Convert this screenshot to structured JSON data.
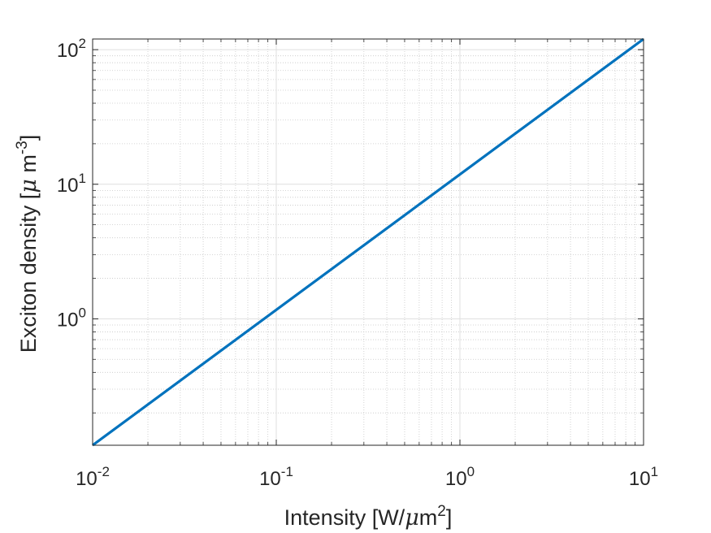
{
  "chart_data": {
    "type": "line",
    "x_scale": "log",
    "y_scale": "log",
    "xlim": [
      0.01,
      10
    ],
    "ylim": [
      0.115,
      120
    ],
    "grid": true,
    "minor_grid": true,
    "xlabel": {
      "text": "Intensity [W/",
      "mu": "μ",
      "unit": "m",
      "sup": "2",
      "close": "]"
    },
    "ylabel": {
      "text": "Exciton density [",
      "mu": "μ",
      "unit": " m",
      "sup": "-3",
      "close": "]"
    },
    "x_ticks": [
      {
        "value": 0.01,
        "base": "10",
        "exp": "-2"
      },
      {
        "value": 0.1,
        "base": "10",
        "exp": "-1"
      },
      {
        "value": 1,
        "base": "10",
        "exp": "0"
      },
      {
        "value": 10,
        "base": "10",
        "exp": "1"
      }
    ],
    "y_ticks": [
      {
        "value": 1,
        "base": "10",
        "exp": "0"
      },
      {
        "value": 10,
        "base": "10",
        "exp": "1"
      },
      {
        "value": 100,
        "base": "10",
        "exp": "2"
      }
    ],
    "series": [
      {
        "color": "#0072BD",
        "x": [
          0.01,
          10
        ],
        "y": [
          0.115,
          120
        ]
      }
    ]
  }
}
